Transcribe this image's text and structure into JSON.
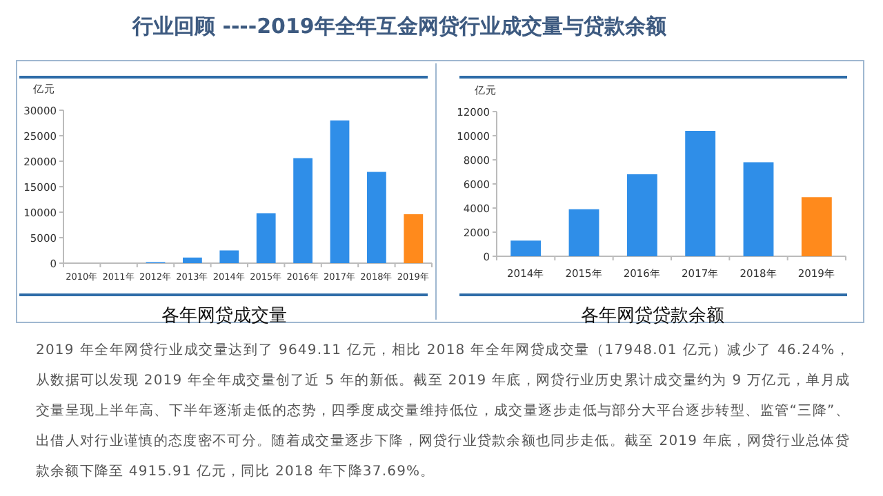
{
  "chart_data": [
    {
      "type": "bar",
      "title": "各年网贷成交量",
      "ylabel": "亿元",
      "categories": [
        "2010年",
        "2011年",
        "2012年",
        "2013年",
        "2014年",
        "2015年",
        "2016年",
        "2017年",
        "2018年",
        "2019年"
      ],
      "values": [
        0,
        0,
        200,
        1100,
        2500,
        9800,
        20600,
        28000,
        17900,
        9600
      ],
      "colors": [
        "#2f8ee8",
        "#2f8ee8",
        "#2f8ee8",
        "#2f8ee8",
        "#2f8ee8",
        "#2f8ee8",
        "#2f8ee8",
        "#2f8ee8",
        "#2f8ee8",
        "#ff8a1c"
      ],
      "ylim": [
        0,
        30000
      ],
      "yticks": [
        0,
        5000,
        10000,
        15000,
        20000,
        25000,
        30000
      ]
    },
    {
      "type": "bar",
      "title": "各年网贷贷款余额",
      "ylabel": "亿元",
      "categories": [
        "2014年",
        "2015年",
        "2016年",
        "2017年",
        "2018年",
        "2019年"
      ],
      "values": [
        1300,
        3900,
        6800,
        10400,
        7800,
        4900
      ],
      "colors": [
        "#2f8ee8",
        "#2f8ee8",
        "#2f8ee8",
        "#2f8ee8",
        "#2f8ee8",
        "#ff8a1c"
      ],
      "ylim": [
        0,
        12000
      ],
      "yticks": [
        0,
        2000,
        4000,
        6000,
        8000,
        10000,
        12000
      ]
    },
    {
      "type": "other",
      "title": "行业回顾 ----2019年全年互金网贷行业成交量与贷款余额",
      "annotations": [
        "2019 年全年网贷行业成交量达到了 9649.11 亿元，相比 2018 年全年网贷成交量（17948.01 亿元）减少了 46.24%，从数据可以发现 2019 年全年成交量创了近 5 年的新低。截至 2019 年底，网贷行业历史累计成交量约为 9 万亿元，单月成交量呈现上半年高、下半年逐渐走低的态势，四季度成交量维持低位，成交量逐步走低与部分大平台逐步转型、监管“三降”、出借人对行业谨慎的态度密不可分。随着成交量逐步下降，网贷行业贷款余额也同步走低。截至 2019 年底，网贷行业总体贷款余额下降至 4915.91 亿元，同比 2018 年下降37.69%。"
      ]
    }
  ]
}
